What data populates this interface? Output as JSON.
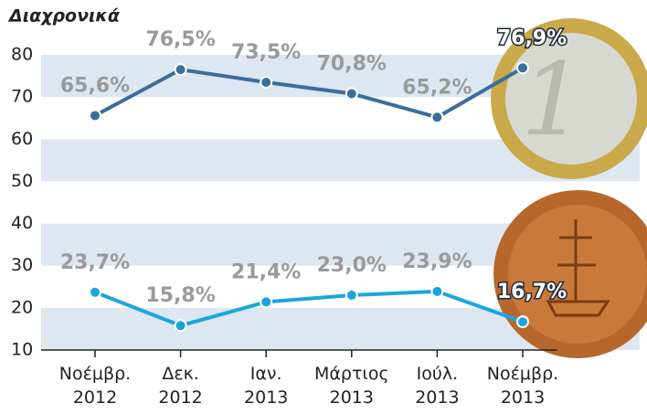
{
  "chart_data": {
    "type": "line",
    "title": "Διαχρονικά",
    "categories": [
      [
        "Νοέμβρ.",
        "2012"
      ],
      [
        "Δεκ.",
        "2012"
      ],
      [
        "Ιαν.",
        "2013"
      ],
      [
        "Μάρτιος",
        "2013"
      ],
      [
        "Ιούλ.",
        "2013"
      ],
      [
        "Νοέμβρ.",
        "2013"
      ]
    ],
    "series": [
      {
        "color": "#3a6d9c",
        "values": [
          65.6,
          76.5,
          73.5,
          70.8,
          65.2,
          76.9
        ],
        "value_labels": [
          "65,6%",
          "76,5%",
          "73,5%",
          "70,8%",
          "65,2%",
          "76,9%"
        ]
      },
      {
        "color": "#1aa6dc",
        "values": [
          23.7,
          15.8,
          21.4,
          23.0,
          23.9,
          16.7
        ],
        "value_labels": [
          "23,7%",
          "15,8%",
          "21,4%",
          "23,0%",
          "23,9%",
          "16,7%"
        ]
      }
    ],
    "ylim": [
      10,
      80
    ],
    "yticks": [
      10,
      20,
      30,
      40,
      50,
      60,
      70,
      80
    ],
    "grid": true
  }
}
